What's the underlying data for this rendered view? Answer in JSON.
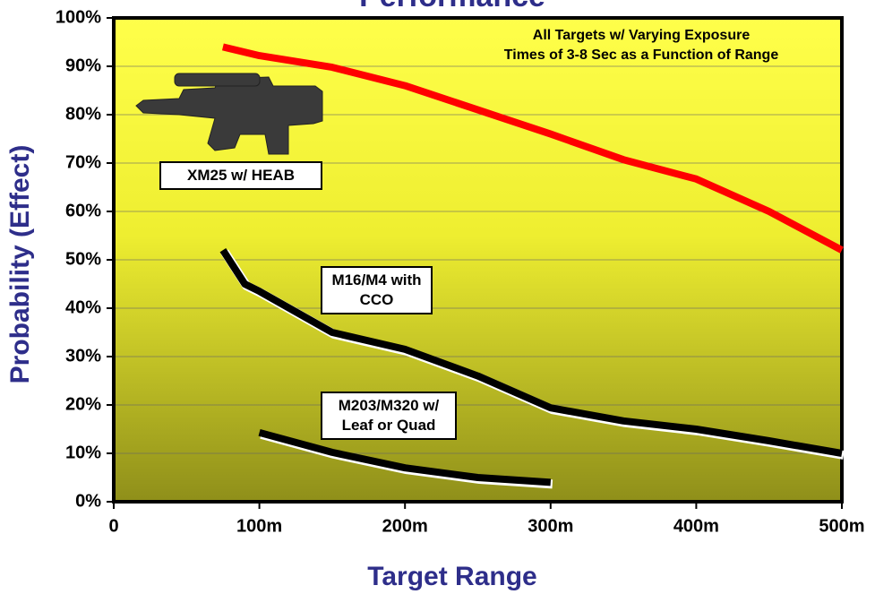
{
  "chart_data": {
    "type": "line",
    "title": "Performance",
    "x_label": "Target Range",
    "y_label": "Probability (Effect)",
    "annotation": [
      "All Targets w/ Varying Exposure",
      "Times of 3-8 Sec as a Function of Range"
    ],
    "xlim": [
      0,
      500
    ],
    "xticks": [
      0,
      {
        "value": 100,
        "label": "100m"
      },
      {
        "value": 200,
        "label": "200m"
      },
      {
        "value": 300,
        "label": "300m"
      },
      {
        "value": 400,
        "label": "400m"
      },
      {
        "value": 500,
        "label": "500m"
      }
    ],
    "ylim": [
      0,
      100
    ],
    "yticks": [
      {
        "value": 0,
        "label": "0%"
      },
      {
        "value": 10,
        "label": "10%"
      },
      {
        "value": 20,
        "label": "20%"
      },
      {
        "value": 30,
        "label": "30%"
      },
      {
        "value": 40,
        "label": "40%"
      },
      {
        "value": 50,
        "label": "50%"
      },
      {
        "value": 60,
        "label": "60%"
      },
      {
        "value": 70,
        "label": "70%"
      },
      {
        "value": 80,
        "label": "80%"
      },
      {
        "value": 90,
        "label": "90%"
      },
      {
        "value": 100,
        "label": "100%"
      }
    ],
    "grid": true,
    "series": [
      {
        "name": "XM25 w/ HEAB",
        "color": "#ff0000",
        "x": [
          75,
          100,
          150,
          200,
          250,
          300,
          350,
          400,
          450,
          500
        ],
        "values": [
          94,
          92.2,
          89.8,
          86,
          81,
          76,
          70.7,
          66.7,
          60,
          52
        ]
      },
      {
        "name": "M16/M4 with CCO",
        "color": "#000000",
        "x": [
          75,
          90,
          100,
          150,
          200,
          250,
          300,
          350,
          400,
          450,
          500
        ],
        "values": [
          52,
          45,
          43.5,
          35,
          31.5,
          26,
          19.4,
          16.7,
          15,
          12.6,
          10
        ]
      },
      {
        "name": "M203/M320 w/ Leaf or Quad",
        "color": "#000000",
        "x": [
          100,
          150,
          200,
          250,
          300
        ],
        "values": [
          14.3,
          10.2,
          7,
          5,
          4
        ]
      }
    ]
  }
}
